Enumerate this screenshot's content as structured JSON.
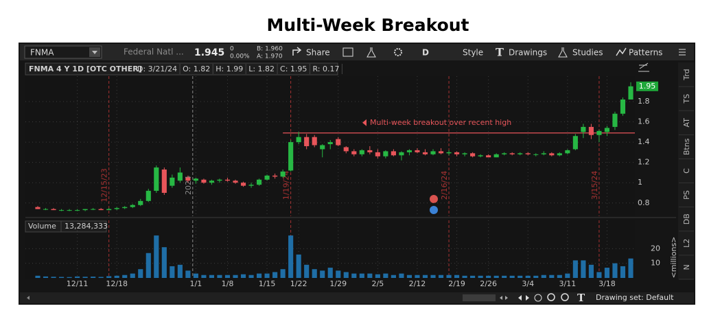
{
  "page_title": "Multi-Week Breakout",
  "toolbar": {
    "symbol": "FNMA",
    "company": "Federal Natl ...",
    "last": "1.945",
    "change": "0",
    "change_pct": "0.00%",
    "bid": "B: 1.960",
    "ask": "A: 1.970",
    "buttons": [
      "Share",
      "D",
      "Style",
      "Drawings",
      "Studies",
      "Patterns"
    ]
  },
  "header": {
    "symbol_info": "FNMA 4 Y 1D [OTC OTHER]",
    "fields": [
      "D: 3/21/24",
      "O: 1.82",
      "H: 1.99",
      "L: 1.82",
      "C: 1.95",
      "R: 0.17"
    ]
  },
  "sidebar_tabs": [
    "Trd",
    "TS",
    "AT",
    "Btns",
    "C",
    "PS",
    "DB",
    "L2",
    "N"
  ],
  "footer": {
    "drawing_set": "Drawing set: Default"
  },
  "chart_data": {
    "type": "candlestick",
    "categories": [
      null,
      null,
      null,
      null,
      null,
      "12/11",
      null,
      null,
      null,
      null,
      "12/18",
      null,
      null,
      null,
      null,
      null,
      null,
      null,
      null,
      null,
      "1/1",
      null,
      null,
      null,
      "1/8",
      null,
      null,
      null,
      null,
      "1/15",
      null,
      null,
      null,
      "1/22",
      null,
      null,
      null,
      null,
      "1/29",
      null,
      null,
      null,
      null,
      "2/5",
      null,
      null,
      null,
      null,
      "2/12",
      null,
      null,
      null,
      null,
      "2/19",
      null,
      null,
      null,
      "2/26",
      null,
      null,
      null,
      null,
      "3/4",
      null,
      null,
      null,
      null,
      "3/11",
      null,
      null,
      null,
      null,
      "3/18",
      null,
      null,
      null
    ],
    "open": [
      0.76,
      0.74,
      0.74,
      0.73,
      0.73,
      0.73,
      0.73,
      0.74,
      0.74,
      0.73,
      0.74,
      0.75,
      0.76,
      0.78,
      0.82,
      0.92,
      1.13,
      0.97,
      1.02,
      1.05,
      1.02,
      1.03,
      1.0,
      1.02,
      1.03,
      1.02,
      1.0,
      0.97,
      0.98,
      1.03,
      1.07,
      1.06,
      1.12,
      1.4,
      1.45,
      1.45,
      1.33,
      1.38,
      1.43,
      1.35,
      1.31,
      1.28,
      1.32,
      1.3,
      1.26,
      1.31,
      1.27,
      1.3,
      1.32,
      1.3,
      1.28,
      1.31,
      1.29,
      1.3,
      1.28,
      1.29,
      1.26,
      1.27,
      1.25,
      1.28,
      1.29,
      1.28,
      1.29,
      1.28,
      1.28,
      1.29,
      1.27,
      1.29,
      1.33,
      1.5,
      1.55,
      1.47,
      1.5,
      1.55,
      1.68,
      1.82
    ],
    "high": [
      0.77,
      0.75,
      0.75,
      0.74,
      0.74,
      0.74,
      0.74,
      0.75,
      0.75,
      0.75,
      0.76,
      0.77,
      0.79,
      0.84,
      0.94,
      1.17,
      1.15,
      1.08,
      1.15,
      1.07,
      1.05,
      1.04,
      1.03,
      1.04,
      1.05,
      1.03,
      1.01,
      1.0,
      1.04,
      1.08,
      1.09,
      1.13,
      1.42,
      1.5,
      1.48,
      1.47,
      1.38,
      1.42,
      1.45,
      1.36,
      1.33,
      1.33,
      1.36,
      1.33,
      1.32,
      1.33,
      1.31,
      1.33,
      1.34,
      1.33,
      1.33,
      1.34,
      1.32,
      1.31,
      1.3,
      1.3,
      1.28,
      1.28,
      1.29,
      1.3,
      1.3,
      1.3,
      1.3,
      1.29,
      1.31,
      1.3,
      1.3,
      1.33,
      1.48,
      1.58,
      1.58,
      1.52,
      1.56,
      1.7,
      1.84,
      1.99
    ],
    "low": [
      0.74,
      0.73,
      0.73,
      0.72,
      0.72,
      0.72,
      0.72,
      0.73,
      0.73,
      0.73,
      0.73,
      0.74,
      0.75,
      0.77,
      0.81,
      0.9,
      0.88,
      0.95,
      1.0,
      1.0,
      0.99,
      0.99,
      0.98,
      1.0,
      1.01,
      0.99,
      0.96,
      0.95,
      0.97,
      1.02,
      1.04,
      1.05,
      1.11,
      1.38,
      1.33,
      1.35,
      1.25,
      1.33,
      1.36,
      1.29,
      1.26,
      1.26,
      1.28,
      1.24,
      1.24,
      1.26,
      1.22,
      1.27,
      1.29,
      1.27,
      1.27,
      1.28,
      1.27,
      1.26,
      1.26,
      1.25,
      1.25,
      1.25,
      1.25,
      1.27,
      1.27,
      1.27,
      1.27,
      1.26,
      1.27,
      1.26,
      1.26,
      1.28,
      1.32,
      1.44,
      1.43,
      1.4,
      1.46,
      1.52,
      1.66,
      1.82
    ],
    "close": [
      0.74,
      0.74,
      0.73,
      0.73,
      0.73,
      0.73,
      0.74,
      0.74,
      0.73,
      0.74,
      0.75,
      0.76,
      0.78,
      0.82,
      0.92,
      1.15,
      0.9,
      1.05,
      1.1,
      1.02,
      1.04,
      1.0,
      1.02,
      1.03,
      1.02,
      1.0,
      0.97,
      0.98,
      1.03,
      1.07,
      1.06,
      1.11,
      1.4,
      1.45,
      1.36,
      1.37,
      1.37,
      1.4,
      1.37,
      1.31,
      1.28,
      1.32,
      1.3,
      1.26,
      1.31,
      1.27,
      1.3,
      1.32,
      1.3,
      1.28,
      1.31,
      1.29,
      1.3,
      1.28,
      1.29,
      1.26,
      1.27,
      1.25,
      1.28,
      1.29,
      1.28,
      1.29,
      1.28,
      1.28,
      1.29,
      1.27,
      1.29,
      1.32,
      1.46,
      1.55,
      1.47,
      1.51,
      1.54,
      1.68,
      1.82,
      1.95
    ],
    "up_color": "#27b844",
    "down_color": "#e8555a",
    "ylim": [
      0.67,
      2.05
    ],
    "yticks": [
      0.8,
      1,
      1.2,
      1.4,
      1.6,
      1.8
    ],
    "grid": true,
    "last_price_color": "#1fa83a",
    "volume": {
      "title": "Volume",
      "readout": "13,284,333",
      "axis_label": "<millions>",
      "color": "#1f6ea6",
      "values": [
        1.5,
        1,
        0.8,
        0.7,
        0.6,
        1,
        0.8,
        0.9,
        0.7,
        1.2,
        1.5,
        2,
        3,
        6,
        17,
        29,
        21,
        8,
        9,
        5,
        3,
        2,
        2,
        2,
        2,
        2,
        2.5,
        2,
        3,
        3,
        4,
        6,
        29,
        16,
        9,
        6,
        5,
        7,
        5,
        4,
        3,
        3,
        3,
        2.5,
        3,
        2,
        3,
        2,
        2,
        2,
        2,
        2,
        2,
        2,
        1.5,
        1.5,
        1.5,
        1.5,
        1.5,
        1.5,
        1.5,
        1.5,
        1.5,
        1.5,
        2,
        2,
        2,
        3,
        12,
        12,
        9,
        4,
        7,
        10,
        8,
        13.284333
      ],
      "ylim": [
        0,
        30
      ],
      "yticks": [
        10,
        20
      ]
    },
    "event_markers": [
      {
        "label": "12/15/23",
        "at": 9,
        "color": "#a83232"
      },
      {
        "label": "2024",
        "at": 19.6,
        "color": "#8a8a8a"
      },
      {
        "label": "1/19/24",
        "at": 32,
        "color": "#a83232"
      },
      {
        "label": "2/16/24",
        "at": 52,
        "color": "#a83232"
      },
      {
        "label": "3/15/24",
        "at": 71,
        "color": "#a83232"
      }
    ],
    "annotation": {
      "text": "Multi-week breakout over recent high",
      "value": 1.49,
      "from": 31,
      "color": "#e8555a"
    }
  }
}
